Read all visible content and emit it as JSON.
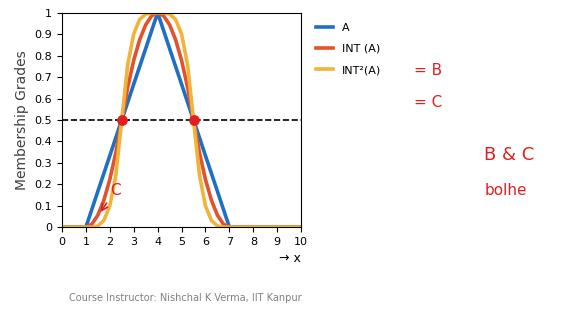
{
  "chart_data": {
    "type": "line",
    "x": [
      0,
      1,
      1.25,
      1.5,
      1.75,
      2,
      2.25,
      2.5,
      2.75,
      3,
      3.25,
      3.5,
      3.75,
      4,
      4.25,
      4.5,
      4.75,
      5,
      5.25,
      5.5,
      5.75,
      6,
      6.25,
      6.5,
      6.75,
      7,
      10
    ],
    "series": [
      {
        "name": "A",
        "color": "#1f6fc4",
        "values": [
          0,
          0,
          0.083,
          0.167,
          0.25,
          0.333,
          0.417,
          0.5,
          0.583,
          0.667,
          0.75,
          0.833,
          0.917,
          1,
          0.917,
          0.833,
          0.75,
          0.667,
          0.583,
          0.5,
          0.417,
          0.333,
          0.25,
          0.167,
          0.083,
          0,
          0
        ]
      },
      {
        "name": "INT (A)",
        "color": "#e2532d",
        "values": [
          0,
          0,
          0.014,
          0.056,
          0.125,
          0.222,
          0.347,
          0.5,
          0.653,
          0.778,
          0.875,
          0.944,
          0.986,
          1,
          0.986,
          0.944,
          0.875,
          0.778,
          0.653,
          0.5,
          0.347,
          0.222,
          0.125,
          0.056,
          0.014,
          0,
          0
        ]
      },
      {
        "name": "INT²(A)",
        "color": "#f0b43a",
        "values": [
          0,
          0,
          0,
          0.006,
          0.031,
          0.099,
          0.241,
          0.5,
          0.759,
          0.901,
          0.969,
          0.994,
          1,
          1,
          1,
          0.994,
          0.969,
          0.901,
          0.759,
          0.5,
          0.241,
          0.099,
          0.031,
          0.006,
          0,
          0,
          0
        ]
      }
    ],
    "reference_line": {
      "y": 0.5,
      "color": "#000000",
      "line_style": "dashed"
    },
    "points": {
      "x": [
        2.5,
        5.5
      ],
      "y": [
        0.5,
        0.5
      ],
      "color": "#e02020"
    },
    "x_label": "→ x",
    "y_label": "Membership Grades",
    "xlim": [
      0,
      10
    ],
    "ylim": [
      0,
      1
    ],
    "xticks": [
      0,
      1,
      2,
      3,
      4,
      5,
      6,
      7,
      8,
      9,
      10
    ],
    "yticks": [
      0,
      0.1,
      0.2,
      0.3,
      0.4,
      0.5,
      0.6,
      0.7,
      0.8,
      0.9,
      1
    ],
    "grid": false,
    "legend": "upper left",
    "annotations": [
      {
        "text": "= B",
        "color": "#e02020"
      },
      {
        "text": "= C",
        "color": "#e02020"
      },
      {
        "text": "B & C",
        "color": "#e02020"
      },
      {
        "text": "bolhe",
        "color": "#e02020"
      },
      {
        "text": "C",
        "color": "#e02020"
      }
    ],
    "caption": "Course Instructor: Nishchal K Verma, IIT Kanpur"
  }
}
